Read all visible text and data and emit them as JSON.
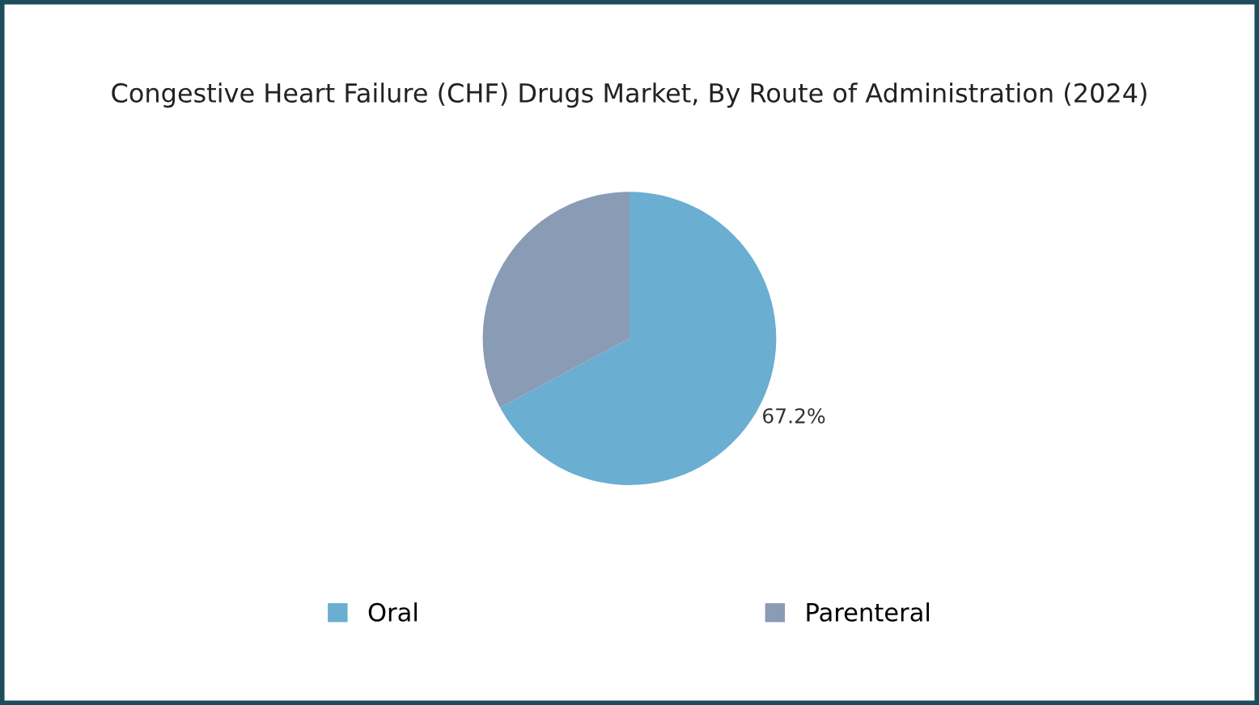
{
  "chart_data": {
    "type": "pie",
    "title": "Congestive Heart Failure (CHF) Drugs Market, By Route of Administration (2024)",
    "categories": [
      "Oral",
      "Parenteral"
    ],
    "values": [
      67.2,
      32.8
    ],
    "colors": [
      "#6aaed2",
      "#8a9bb5"
    ],
    "value_labels": [
      "67.2%",
      null
    ],
    "legend": "bottom"
  }
}
